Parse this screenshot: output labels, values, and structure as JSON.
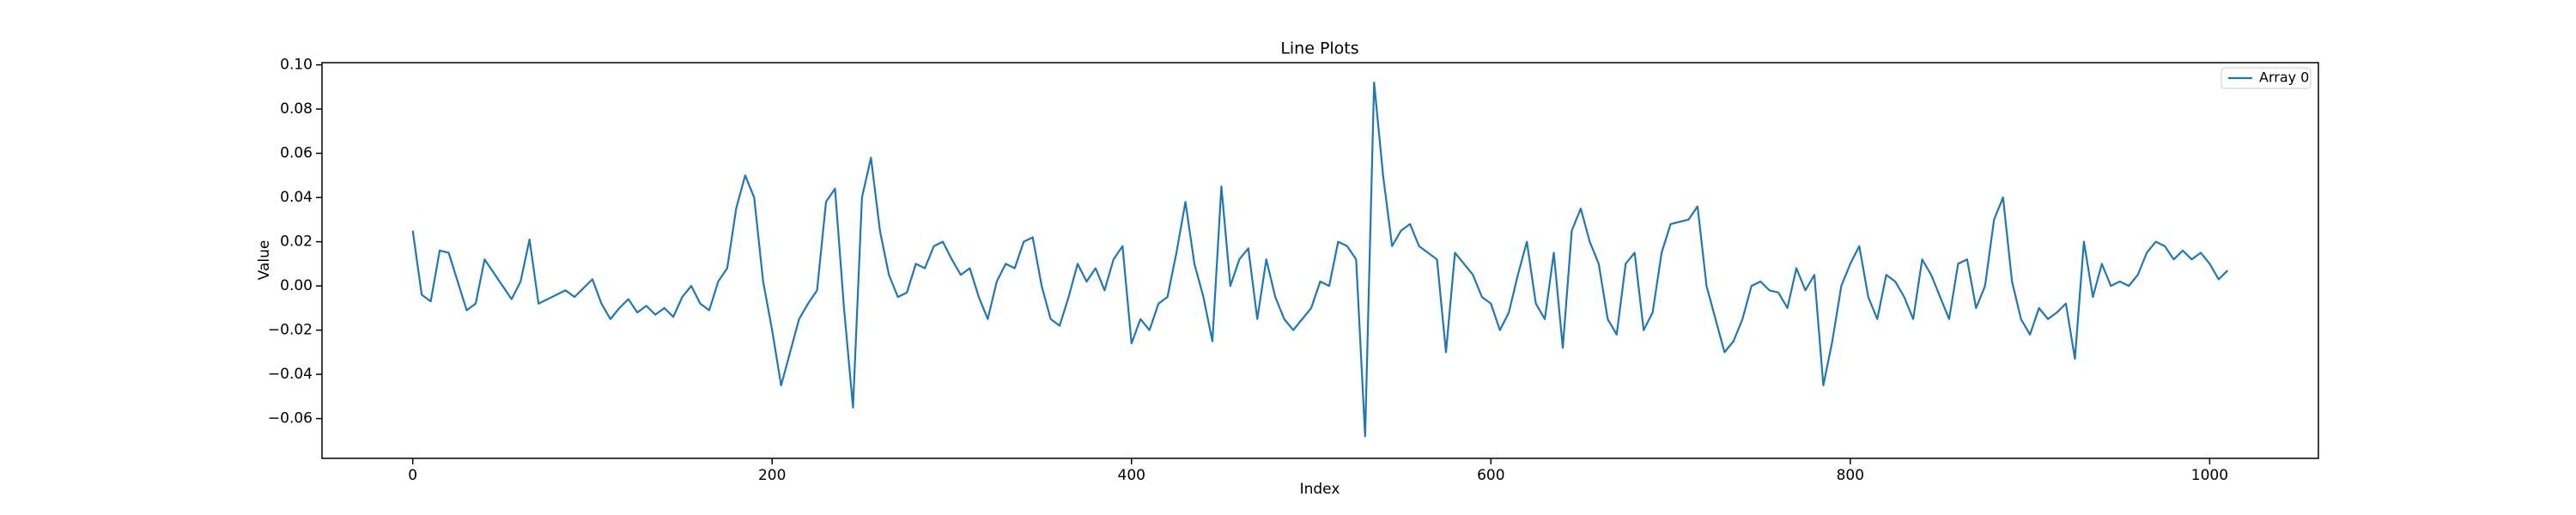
{
  "chart_data": {
    "type": "line",
    "title": "Line Plots",
    "x_label": "Index",
    "y_label": "Value",
    "x": [
      0,
      5,
      10,
      15,
      20,
      25,
      30,
      35,
      40,
      45,
      50,
      55,
      60,
      65,
      70,
      75,
      80,
      85,
      90,
      95,
      100,
      105,
      110,
      115,
      120,
      125,
      130,
      135,
      140,
      145,
      150,
      155,
      160,
      165,
      170,
      175,
      180,
      185,
      190,
      195,
      200,
      205,
      210,
      215,
      220,
      225,
      230,
      235,
      240,
      245,
      250,
      255,
      260,
      265,
      270,
      275,
      280,
      285,
      290,
      295,
      300,
      305,
      310,
      315,
      320,
      325,
      330,
      335,
      340,
      345,
      350,
      355,
      360,
      365,
      370,
      375,
      380,
      385,
      390,
      395,
      400,
      405,
      410,
      415,
      420,
      425,
      430,
      435,
      440,
      445,
      450,
      455,
      460,
      465,
      470,
      475,
      480,
      485,
      490,
      495,
      500,
      505,
      510,
      515,
      520,
      525,
      530,
      535,
      540,
      545,
      550,
      555,
      560,
      565,
      570,
      575,
      580,
      585,
      590,
      595,
      600,
      605,
      610,
      615,
      620,
      625,
      630,
      635,
      640,
      645,
      650,
      655,
      660,
      665,
      670,
      675,
      680,
      685,
      690,
      695,
      700,
      705,
      710,
      715,
      720,
      725,
      730,
      735,
      740,
      745,
      750,
      755,
      760,
      765,
      770,
      775,
      780,
      785,
      790,
      795,
      800,
      805,
      810,
      815,
      820,
      825,
      830,
      835,
      840,
      845,
      850,
      855,
      860,
      865,
      870,
      875,
      880,
      885,
      890,
      895,
      900,
      905,
      910,
      915,
      920,
      925,
      930,
      935,
      940,
      945,
      950,
      955,
      960,
      965,
      970,
      975,
      980,
      985,
      990,
      995,
      1000,
      1005,
      1010
    ],
    "series": [
      {
        "name": "Array 0",
        "color": "#1f77b4",
        "values": [
          0.025,
          -0.004,
          -0.007,
          0.016,
          0.015,
          0.002,
          -0.011,
          -0.008,
          0.012,
          0.006,
          0.0,
          -0.006,
          0.002,
          0.021,
          -0.008,
          -0.006,
          -0.004,
          -0.002,
          -0.005,
          -0.001,
          0.003,
          -0.008,
          -0.015,
          -0.01,
          -0.006,
          -0.012,
          -0.009,
          -0.013,
          -0.01,
          -0.014,
          -0.005,
          0.0,
          -0.008,
          -0.011,
          0.002,
          0.008,
          0.035,
          0.05,
          0.04,
          0.002,
          -0.02,
          -0.045,
          -0.03,
          -0.015,
          -0.008,
          -0.002,
          0.038,
          0.044,
          -0.01,
          -0.055,
          0.04,
          0.058,
          0.025,
          0.005,
          -0.005,
          -0.003,
          0.01,
          0.008,
          0.018,
          0.02,
          0.012,
          0.005,
          0.008,
          -0.005,
          -0.015,
          0.002,
          0.01,
          0.008,
          0.02,
          0.022,
          0.0,
          -0.015,
          -0.018,
          -0.005,
          0.01,
          0.002,
          0.008,
          -0.002,
          0.012,
          0.018,
          -0.026,
          -0.015,
          -0.02,
          -0.008,
          -0.005,
          0.015,
          0.038,
          0.01,
          -0.005,
          -0.025,
          0.045,
          0.0,
          0.012,
          0.017,
          -0.015,
          0.012,
          -0.005,
          -0.015,
          -0.02,
          -0.015,
          -0.01,
          0.002,
          0.0,
          0.02,
          0.018,
          0.012,
          -0.068,
          0.092,
          0.05,
          0.018,
          0.025,
          0.028,
          0.018,
          0.015,
          0.012,
          -0.03,
          0.015,
          0.01,
          0.005,
          -0.005,
          -0.008,
          -0.02,
          -0.012,
          0.005,
          0.02,
          -0.008,
          -0.015,
          0.015,
          -0.028,
          0.025,
          0.035,
          0.02,
          0.01,
          -0.015,
          -0.022,
          0.01,
          0.015,
          -0.02,
          -0.012,
          0.015,
          0.028,
          0.029,
          0.03,
          0.036,
          0.0,
          -0.015,
          -0.03,
          -0.025,
          -0.015,
          0.0,
          0.002,
          -0.002,
          -0.003,
          -0.01,
          0.008,
          -0.002,
          0.005,
          -0.045,
          -0.025,
          0.0,
          0.01,
          0.018,
          -0.005,
          -0.015,
          0.005,
          0.002,
          -0.005,
          -0.015,
          0.012,
          0.005,
          -0.005,
          -0.015,
          0.01,
          0.012,
          -0.01,
          0.0,
          0.03,
          0.04,
          0.002,
          -0.015,
          -0.022,
          -0.01,
          -0.015,
          -0.012,
          -0.008,
          -0.033,
          0.02,
          -0.005,
          0.01,
          0.0,
          0.002,
          0.0,
          0.005,
          0.015,
          0.02,
          0.018,
          0.012,
          0.016,
          0.012,
          0.015,
          0.01,
          0.003,
          0.007
        ]
      }
    ],
    "xlim": [
      -50.5,
      1060.5
    ],
    "ylim": [
      -0.078,
      0.101
    ],
    "xticks": [
      0,
      200,
      400,
      600,
      800,
      1000
    ],
    "yticks": [
      {
        "value": -0.06,
        "label": "−0.06"
      },
      {
        "value": -0.04,
        "label": "−0.04"
      },
      {
        "value": -0.02,
        "label": "−0.02"
      },
      {
        "value": 0,
        "label": "0.00"
      },
      0.02,
      0.04,
      0.06,
      0.08,
      {
        "value": 0.1,
        "label": "0.10"
      }
    ],
    "grid": false,
    "legend": "upper right"
  }
}
